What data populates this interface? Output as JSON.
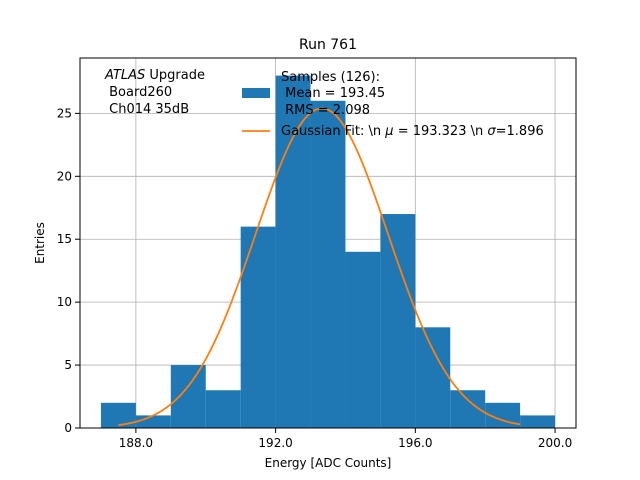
{
  "chart_data": {
    "type": "bar",
    "title": "Run 761",
    "xlabel": "Energy [ADC Counts]",
    "ylabel": "Entries",
    "xlim": [
      186.4,
      200.6
    ],
    "ylim": [
      0,
      29.4
    ],
    "xticks": [
      188.0,
      192.0,
      196.0,
      200.0
    ],
    "xtick_labels": [
      "188.0",
      "192.0",
      "196.0",
      "200.0"
    ],
    "yticks": [
      0,
      5,
      10,
      15,
      20,
      25
    ],
    "ytick_labels": [
      "0",
      "5",
      "10",
      "15",
      "20",
      "25"
    ],
    "grid": true,
    "bins": [
      {
        "x0": 187.0,
        "x1": 188.0,
        "count": 2
      },
      {
        "x0": 188.0,
        "x1": 189.0,
        "count": 1
      },
      {
        "x0": 189.0,
        "x1": 190.0,
        "count": 5
      },
      {
        "x0": 190.0,
        "x1": 191.0,
        "count": 3
      },
      {
        "x0": 191.0,
        "x1": 192.0,
        "count": 16
      },
      {
        "x0": 192.0,
        "x1": 193.0,
        "count": 28
      },
      {
        "x0": 193.0,
        "x1": 194.0,
        "count": 26
      },
      {
        "x0": 194.0,
        "x1": 195.0,
        "count": 14
      },
      {
        "x0": 195.0,
        "x1": 196.0,
        "count": 17
      },
      {
        "x0": 196.0,
        "x1": 197.0,
        "count": 8
      },
      {
        "x0": 197.0,
        "x1": 198.0,
        "count": 3
      },
      {
        "x0": 198.0,
        "x1": 199.0,
        "count": 2
      },
      {
        "x0": 199.0,
        "x1": 200.0,
        "count": 1
      }
    ],
    "fit": {
      "type": "gaussian",
      "mu": 193.323,
      "sigma": 1.896,
      "amplitude": 25.4,
      "x_range": [
        187.5,
        199.0
      ]
    },
    "colors": {
      "bars": "#1f77b4",
      "fit": "#ff7f0e",
      "grid": "#b0b0b0"
    },
    "atlas_label": {
      "italic": "ATLAS",
      "rest": " Upgrade",
      "line2": " Board260",
      "line3": " Ch014 35dB"
    },
    "legend": {
      "position": "top-right",
      "hist_label_line1": "Samples (126):",
      "hist_label_line2": " Mean = 193.45",
      "hist_label_line3": " RMS = 2.098",
      "fit_label_pre": "Gaussian Fit: \\n ",
      "fit_label_mu": "μ",
      "fit_label_mid": " = 193.323 \\n ",
      "fit_label_sigma": "σ",
      "fit_label_post": "=1.896"
    }
  }
}
